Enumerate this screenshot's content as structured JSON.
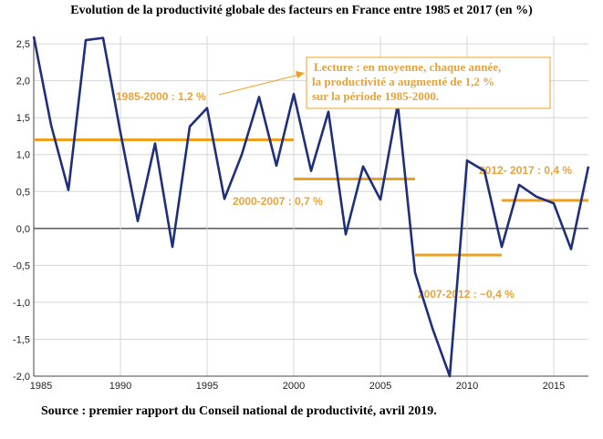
{
  "header": {
    "title": "Evolution de la productivité globale des facteurs en France entre 1985 et 2017 (en %)"
  },
  "footer": {
    "source": "Source : premier rapport du Conseil national de productivité, avril 2019."
  },
  "colors": {
    "series": "#1f2f7a",
    "averages": "#f0a020",
    "annotation_text": "#e8a33c",
    "grid": "#d6d6d6"
  },
  "chart_data": {
    "type": "line",
    "title": "Evolution de la productivité globale des facteurs en France entre 1985 et 2017 (en %)",
    "xlabel": "",
    "ylabel": "",
    "xlim": [
      1985,
      2017
    ],
    "ylim": [
      -2.0,
      2.6
    ],
    "grid": true,
    "x_ticks": [
      1985,
      1990,
      1995,
      2000,
      2005,
      2010,
      2015
    ],
    "y_ticks": [
      2.5,
      2.0,
      1.5,
      1.0,
      0.5,
      0.0,
      -0.5,
      -1.0,
      -1.5,
      -2.0
    ],
    "y_tick_labels": [
      "2,5",
      "2,0",
      "1,5",
      "1,0",
      "0,5",
      "0,0",
      "-0,5",
      "-1,0",
      "-1,5",
      "-2,0"
    ],
    "series": [
      {
        "x": [
          1985,
          1986,
          1987,
          1988,
          1989,
          1990,
          1991,
          1992,
          1993,
          1994,
          1995,
          1996,
          1997,
          1998,
          1999,
          2000,
          2001,
          2002,
          2003,
          2004,
          2005,
          2006,
          2007,
          2008,
          2009,
          2010,
          2011,
          2012,
          2013,
          2014,
          2015,
          2016,
          2017
        ],
        "values": [
          2.6,
          1.4,
          0.52,
          2.55,
          2.58,
          1.3,
          0.1,
          1.15,
          -0.25,
          1.38,
          1.63,
          0.4,
          1.0,
          1.78,
          0.85,
          1.82,
          0.78,
          1.58,
          -0.08,
          0.84,
          0.39,
          1.68,
          -0.6,
          -1.35,
          -2.0,
          0.92,
          0.78,
          -0.25,
          0.59,
          0.43,
          0.34,
          -0.28,
          0.84
        ]
      }
    ],
    "averages": [
      {
        "label": "1985-2000 : 1,2 %",
        "x_start": 1985,
        "x_end": 2000,
        "value": 1.2
      },
      {
        "label": "2000-2007 : 0,7 %",
        "x_start": 2000,
        "x_end": 2007,
        "value": 0.67
      },
      {
        "label": "2007-2012 : −0,4 %",
        "x_start": 2007,
        "x_end": 2012,
        "value": -0.36
      },
      {
        "label": "2012- 2017 : 0,4 %",
        "x_start": 2012,
        "x_end": 2017,
        "value": 0.38
      }
    ],
    "annotation": {
      "lines": [
        "Lecture : en moyenne, chaque année,",
        "la productivité a augmenté de 1,2 %",
        "sur la  période 1985-2000."
      ]
    }
  }
}
